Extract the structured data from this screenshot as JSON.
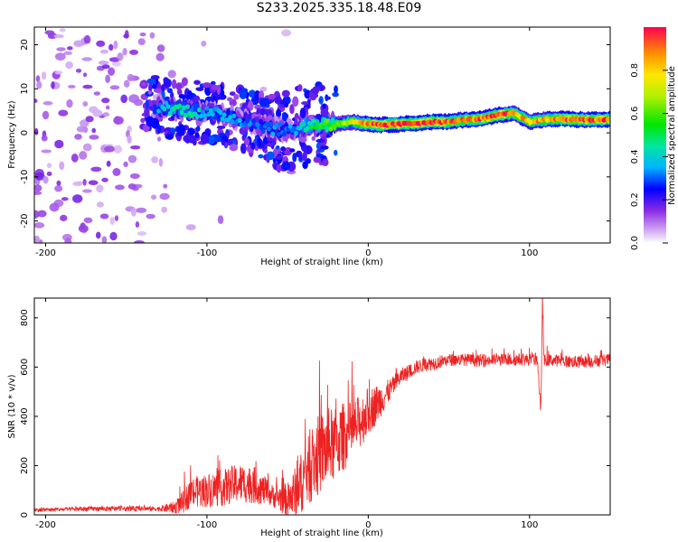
{
  "page": {
    "title": "S233.2025.335.18.48.E09"
  },
  "chart_data": [
    {
      "type": "heatmap",
      "title": "S233.2025.335.18.48.E09",
      "xlabel": "Height of straight line (km)",
      "ylabel": "Frequency (Hz)",
      "xlim": [
        -207,
        150
      ],
      "ylim": [
        -25,
        24
      ],
      "xticks": [
        -200,
        -100,
        0,
        100
      ],
      "xticklabels": [
        "-200",
        "-100",
        "0",
        "100"
      ],
      "yticks": [
        -20,
        -10,
        0,
        10,
        20
      ],
      "yticklabels": [
        "-20",
        "-10",
        "0",
        "10",
        "20"
      ],
      "ridge_km": [
        -130,
        -120,
        -110,
        -100,
        -90,
        -80,
        -70,
        -60,
        -50,
        -40,
        -30,
        -20,
        -10,
        0,
        10,
        20,
        30,
        40,
        50,
        60,
        70,
        80,
        90,
        100,
        110,
        120,
        130,
        140,
        150
      ],
      "ridge_hz": [
        6,
        5.5,
        5,
        4.5,
        4,
        3,
        2,
        1,
        0.5,
        1.5,
        2,
        2,
        2.5,
        2,
        1.8,
        2,
        2.2,
        2.5,
        2.5,
        3,
        3.2,
        4,
        4.5,
        2.5,
        3,
        3.2,
        3,
        3,
        3
      ],
      "ridge_amp": [
        0.35,
        0.45,
        0.5,
        0.35,
        0.4,
        0.35,
        0.3,
        0.35,
        0.3,
        0.45,
        0.55,
        0.65,
        0.75,
        0.95,
        0.98,
        1.0,
        1.0,
        1.0,
        0.95,
        0.9,
        0.95,
        1.0,
        0.9,
        0.85,
        0.85,
        0.95,
        0.95,
        0.95,
        0.95
      ],
      "colorbar": {
        "label": "Normalized spectral amplitude",
        "range": [
          0,
          1
        ],
        "ticks": [
          0.0,
          0.2,
          0.4,
          0.6,
          0.8
        ],
        "ticklabels": [
          "0.0",
          "0.2",
          "0.4",
          "0.6",
          "0.8"
        ]
      }
    },
    {
      "type": "line",
      "xlabel": "Height of straight line (km)",
      "ylabel": "SNR (10 * v/v)",
      "xlim": [
        -207,
        150
      ],
      "ylim": [
        0,
        880
      ],
      "xticks": [
        -200,
        -100,
        0,
        100
      ],
      "xticklabels": [
        "-200",
        "-100",
        "0",
        "100"
      ],
      "yticks": [
        0,
        200,
        400,
        600,
        800
      ],
      "yticklabels": [
        "0",
        "200",
        "400",
        "600",
        "800"
      ],
      "series": [
        {
          "name": "SNR",
          "color": "#ee2222",
          "x": [
            -207,
            -190,
            -170,
            -150,
            -130,
            -120,
            -115,
            -110,
            -100,
            -90,
            -80,
            -70,
            -60,
            -50,
            -45,
            -40,
            -35,
            -30,
            -25,
            -20,
            -15,
            -10,
            -5,
            0,
            5,
            10,
            15,
            20,
            25,
            30,
            35,
            40,
            50,
            60,
            70,
            80,
            90,
            100,
            105,
            107,
            108,
            109,
            110,
            120,
            130,
            140,
            150
          ],
          "y": [
            20,
            22,
            25,
            25,
            25,
            30,
            50,
            90,
            100,
            110,
            130,
            120,
            80,
            60,
            90,
            150,
            200,
            250,
            270,
            290,
            320,
            340,
            380,
            420,
            450,
            480,
            520,
            560,
            580,
            600,
            610,
            615,
            630,
            630,
            625,
            630,
            630,
            630,
            630,
            400,
            880,
            620,
            630,
            625,
            620,
            625,
            630
          ],
          "spread": [
            8,
            8,
            10,
            10,
            10,
            25,
            45,
            60,
            70,
            75,
            80,
            75,
            45,
            70,
            110,
            130,
            150,
            170,
            160,
            150,
            140,
            120,
            110,
            100,
            80,
            60,
            40,
            35,
            30,
            28,
            28,
            28,
            25,
            25,
            25,
            25,
            25,
            25,
            25,
            30,
            40,
            30,
            25,
            25,
            25,
            25,
            25
          ]
        }
      ]
    }
  ]
}
